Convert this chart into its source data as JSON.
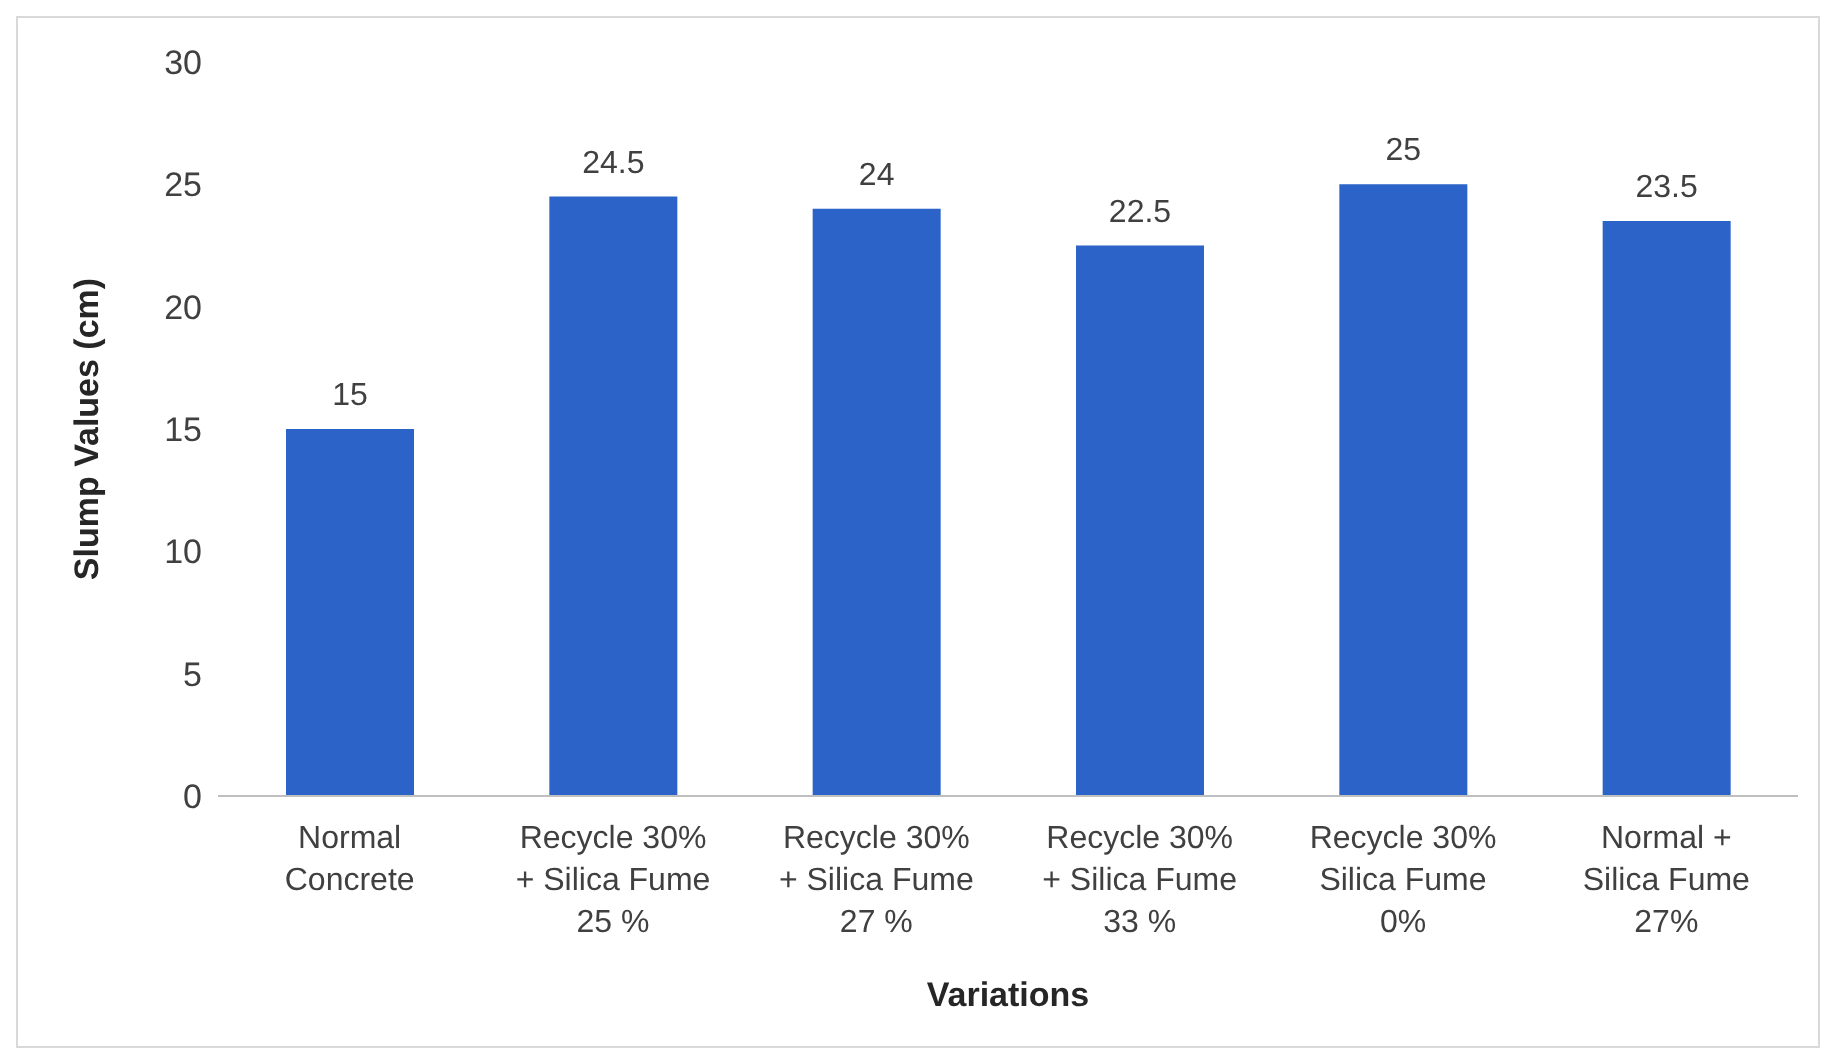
{
  "chart_data": {
    "type": "bar",
    "xlabel": "Variations",
    "ylabel": "Slump Values (cm)",
    "categories": [
      "Normal\nConcrete",
      "Recycle 30%\n+ Silica Fume\n25 %",
      "Recycle 30%\n+ Silica Fume\n27 %",
      "Recycle 30%\n+ Silica Fume\n33 %",
      "Recycle 30%\nSilica Fume\n0%",
      "Normal +\nSilica Fume\n27%"
    ],
    "values": [
      15,
      24.5,
      24,
      22.5,
      25,
      23.5
    ],
    "color": "#2b63c8",
    "ylim": [
      0,
      30
    ],
    "yticks": [
      0,
      5,
      10,
      15,
      20,
      25,
      30
    ],
    "grid": false,
    "data_labels": true
  }
}
